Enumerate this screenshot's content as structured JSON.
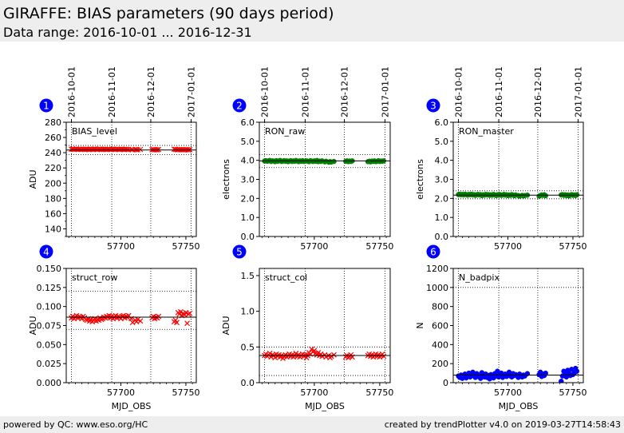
{
  "header": {
    "title": "GIRAFFE: BIAS parameters (90 days period)",
    "subtitle": "Data range: 2016-10-01 ... 2016-12-31"
  },
  "footer": {
    "left": "powered by QC: www.eso.org/HC",
    "right": "created by trendPlotter v4.0 on 2019-03-27T14:58:43"
  },
  "colors": {
    "badge": "#0000ff",
    "red": "#ff0000",
    "green": "#008000",
    "blue": "#0000ff",
    "line": "#000000"
  },
  "date_ticks": [
    {
      "label": "2016-10-01",
      "mjd": 57662
    },
    {
      "label": "2016-11-01",
      "mjd": 57693
    },
    {
      "label": "2016-12-01",
      "mjd": 57723
    },
    {
      "label": "2017-01-01",
      "mjd": 57754
    }
  ],
  "chart_data": [
    {
      "id": 1,
      "badge": "1",
      "type": "scatter",
      "label": "BIAS_level",
      "ylabel": "ADU",
      "xlabel": "",
      "marker": "x",
      "color": "red",
      "xlim": [
        57658,
        57758
      ],
      "ylim": [
        130,
        280
      ],
      "yticks": [
        "140",
        "160",
        "180",
        "200",
        "220",
        "240",
        "260",
        "280"
      ],
      "ytick_values": [
        140,
        160,
        180,
        200,
        220,
        240,
        260,
        280
      ],
      "xticks": [
        "57700",
        "57750"
      ],
      "xtick_values": [
        57700,
        57750
      ],
      "ref": 243.5,
      "band": [
        237.5,
        249.5
      ],
      "x": [
        57662,
        57663,
        57664,
        57665,
        57666,
        57667,
        57668,
        57669,
        57670,
        57671,
        57672,
        57673,
        57674,
        57675,
        57676,
        57677,
        57678,
        57679,
        57680,
        57681,
        57682,
        57683,
        57684,
        57685,
        57686,
        57687,
        57688,
        57689,
        57690,
        57691,
        57692,
        57693,
        57694,
        57695,
        57696,
        57697,
        57698,
        57699,
        57700,
        57701,
        57702,
        57703,
        57704,
        57705,
        57706,
        57708,
        57709,
        57711,
        57712,
        57713,
        57715,
        57724,
        57725,
        57726,
        57727,
        57728,
        57729,
        57741,
        57742,
        57743,
        57744,
        57745,
        57746,
        57747,
        57748,
        57749,
        57750,
        57751,
        57752,
        57753
      ],
      "y": [
        244.5,
        244.8,
        244.3,
        244.6,
        244.9,
        244.2,
        244.7,
        244.4,
        244.1,
        244.6,
        244.3,
        244.8,
        244.5,
        244.2,
        244.0,
        244.6,
        244.3,
        244.7,
        244.9,
        244.4,
        244.1,
        244.6,
        244.8,
        244.2,
        244.5,
        244.3,
        244.7,
        244.0,
        244.4,
        244.6,
        244.2,
        244.5,
        244.8,
        244.3,
        244.1,
        244.6,
        244.4,
        244.2,
        244.7,
        244.5,
        244.3,
        244.0,
        244.6,
        244.2,
        244.4,
        244.1,
        243.9,
        244.3,
        244.0,
        243.8,
        244.2,
        243.9,
        244.1,
        243.8,
        244.0,
        243.7,
        244.2,
        244.6,
        244.3,
        244.0,
        243.8,
        244.2,
        243.9,
        244.1,
        243.7,
        244.0,
        243.8,
        244.2,
        243.6,
        244.0
      ]
    },
    {
      "id": 2,
      "badge": "2",
      "type": "scatter",
      "label": "RON_raw",
      "ylabel": "electrons",
      "xlabel": "",
      "marker": "o",
      "color": "green",
      "xlim": [
        57658,
        57758
      ],
      "ylim": [
        0,
        6
      ],
      "yticks": [
        "0.0",
        "1.0",
        "2.0",
        "3.0",
        "4.0",
        "5.0",
        "6.0"
      ],
      "ytick_values": [
        0,
        1,
        2,
        3,
        4,
        5,
        6
      ],
      "xticks": [
        "57700",
        "57750"
      ],
      "xtick_values": [
        57700,
        57750
      ],
      "ref": 3.97,
      "band": [
        3.62,
        4.3
      ],
      "x": [
        57662,
        57663,
        57664,
        57665,
        57666,
        57667,
        57668,
        57669,
        57670,
        57671,
        57672,
        57673,
        57674,
        57675,
        57676,
        57677,
        57678,
        57679,
        57680,
        57681,
        57682,
        57683,
        57684,
        57685,
        57686,
        57687,
        57688,
        57689,
        57690,
        57691,
        57692,
        57693,
        57694,
        57695,
        57696,
        57697,
        57698,
        57699,
        57700,
        57701,
        57702,
        57703,
        57704,
        57705,
        57706,
        57708,
        57709,
        57711,
        57712,
        57713,
        57715,
        57724,
        57725,
        57726,
        57727,
        57728,
        57729,
        57741,
        57742,
        57743,
        57744,
        57745,
        57746,
        57747,
        57748,
        57749,
        57750,
        57751,
        57752,
        57753
      ],
      "y": [
        3.96,
        3.98,
        3.95,
        3.97,
        3.99,
        3.94,
        3.97,
        3.96,
        3.93,
        3.98,
        3.95,
        3.97,
        3.99,
        3.94,
        3.96,
        3.98,
        3.95,
        3.97,
        3.93,
        3.96,
        3.98,
        3.94,
        3.97,
        3.95,
        3.99,
        3.96,
        3.93,
        3.97,
        3.95,
        3.98,
        3.94,
        3.96,
        3.97,
        3.95,
        3.93,
        3.98,
        3.96,
        3.94,
        3.97,
        3.95,
        3.99,
        3.93,
        3.96,
        3.94,
        3.97,
        3.92,
        3.95,
        3.9,
        3.93,
        3.91,
        3.94,
        3.95,
        3.97,
        3.93,
        3.96,
        3.94,
        3.97,
        3.93,
        3.95,
        3.92,
        3.96,
        3.94,
        3.97,
        3.93,
        3.95,
        3.98,
        3.94,
        3.96,
        3.95,
        3.97
      ]
    },
    {
      "id": 3,
      "badge": "3",
      "type": "scatter",
      "label": "RON_master",
      "ylabel": "electrons",
      "xlabel": "",
      "marker": "o",
      "color": "green",
      "xlim": [
        57658,
        57758
      ],
      "ylim": [
        0,
        6
      ],
      "yticks": [
        "0.0",
        "1.0",
        "2.0",
        "3.0",
        "4.0",
        "5.0",
        "6.0"
      ],
      "ytick_values": [
        0,
        1,
        2,
        3,
        4,
        5,
        6
      ],
      "xticks": [
        "57700",
        "57750"
      ],
      "xtick_values": [
        57700,
        57750
      ],
      "ref": 2.17,
      "band": [
        1.98,
        2.4
      ],
      "x": [
        57662,
        57663,
        57664,
        57665,
        57666,
        57667,
        57668,
        57669,
        57670,
        57671,
        57672,
        57673,
        57674,
        57675,
        57676,
        57677,
        57678,
        57679,
        57680,
        57681,
        57682,
        57683,
        57684,
        57685,
        57686,
        57687,
        57688,
        57689,
        57690,
        57691,
        57692,
        57693,
        57694,
        57695,
        57696,
        57697,
        57698,
        57699,
        57700,
        57701,
        57702,
        57703,
        57704,
        57705,
        57706,
        57708,
        57709,
        57711,
        57712,
        57713,
        57715,
        57724,
        57725,
        57726,
        57727,
        57728,
        57729,
        57741,
        57742,
        57743,
        57744,
        57745,
        57746,
        57747,
        57748,
        57749,
        57750,
        57751,
        57752,
        57753
      ],
      "y": [
        2.2,
        2.22,
        2.19,
        2.21,
        2.18,
        2.22,
        2.2,
        2.17,
        2.21,
        2.19,
        2.22,
        2.18,
        2.2,
        2.16,
        2.19,
        2.21,
        2.18,
        2.2,
        2.15,
        2.19,
        2.17,
        2.21,
        2.18,
        2.2,
        2.16,
        2.19,
        2.17,
        2.21,
        2.18,
        2.15,
        2.19,
        2.17,
        2.2,
        2.16,
        2.18,
        2.21,
        2.17,
        2.19,
        2.15,
        2.18,
        2.16,
        2.2,
        2.17,
        2.14,
        2.18,
        2.15,
        2.12,
        2.16,
        2.13,
        2.15,
        2.17,
        2.12,
        2.15,
        2.18,
        2.16,
        2.19,
        2.14,
        2.18,
        2.2,
        2.16,
        2.19,
        2.15,
        2.18,
        2.13,
        2.17,
        2.2,
        2.16,
        2.18,
        2.15,
        2.19
      ]
    },
    {
      "id": 4,
      "badge": "4",
      "type": "scatter",
      "label": "struct_row",
      "ylabel": "ADU",
      "xlabel": "MJD_OBS",
      "marker": "x",
      "color": "red",
      "xlim": [
        57658,
        57758
      ],
      "ylim": [
        0,
        0.15
      ],
      "yticks": [
        "0.000",
        "0.025",
        "0.050",
        "0.075",
        "0.100",
        "0.125",
        "0.150"
      ],
      "ytick_values": [
        0,
        0.025,
        0.05,
        0.075,
        0.1,
        0.125,
        0.15
      ],
      "xticks": [
        "57700",
        "57750"
      ],
      "xtick_values": [
        57700,
        57750
      ],
      "ref": 0.086,
      "band": [
        0.07,
        0.12
      ],
      "x": [
        57662,
        57663,
        57664,
        57665,
        57666,
        57667,
        57668,
        57669,
        57670,
        57671,
        57672,
        57673,
        57674,
        57675,
        57676,
        57677,
        57678,
        57679,
        57680,
        57681,
        57682,
        57683,
        57684,
        57685,
        57686,
        57687,
        57688,
        57689,
        57690,
        57691,
        57692,
        57693,
        57694,
        57695,
        57696,
        57697,
        57698,
        57699,
        57700,
        57701,
        57702,
        57703,
        57704,
        57705,
        57706,
        57708,
        57709,
        57711,
        57712,
        57713,
        57715,
        57724,
        57725,
        57726,
        57727,
        57728,
        57729,
        57741,
        57742,
        57743,
        57744,
        57745,
        57746,
        57747,
        57748,
        57749,
        57750,
        57751,
        57752,
        57753
      ],
      "y": [
        0.085,
        0.087,
        0.084,
        0.086,
        0.088,
        0.085,
        0.087,
        0.086,
        0.084,
        0.087,
        0.085,
        0.083,
        0.082,
        0.084,
        0.081,
        0.083,
        0.08,
        0.082,
        0.084,
        0.081,
        0.083,
        0.082,
        0.085,
        0.083,
        0.084,
        0.086,
        0.085,
        0.087,
        0.086,
        0.088,
        0.085,
        0.087,
        0.084,
        0.086,
        0.088,
        0.085,
        0.087,
        0.086,
        0.084,
        0.087,
        0.088,
        0.085,
        0.087,
        0.086,
        0.088,
        0.084,
        0.079,
        0.082,
        0.08,
        0.083,
        0.081,
        0.085,
        0.087,
        0.084,
        0.086,
        0.085,
        0.087,
        0.08,
        0.082,
        0.079,
        0.092,
        0.09,
        0.093,
        0.088,
        0.091,
        0.089,
        0.092,
        0.078,
        0.09,
        0.091
      ]
    },
    {
      "id": 5,
      "badge": "5",
      "type": "scatter",
      "label": "struct_col",
      "ylabel": "ADU",
      "xlabel": "MJD_OBS",
      "marker": "x",
      "color": "red",
      "xlim": [
        57658,
        57758
      ],
      "ylim": [
        0,
        1.6
      ],
      "yticks": [
        "0.0",
        "0.5",
        "1.0",
        "1.5"
      ],
      "ytick_values": [
        0,
        0.5,
        1.0,
        1.5
      ],
      "xticks": [
        "57700",
        "57750"
      ],
      "xtick_values": [
        57700,
        57750
      ],
      "ref": 0.38,
      "band": [
        0.1,
        0.5
      ],
      "x": [
        57662,
        57663,
        57664,
        57665,
        57666,
        57667,
        57668,
        57669,
        57670,
        57671,
        57672,
        57673,
        57674,
        57675,
        57676,
        57677,
        57678,
        57679,
        57680,
        57681,
        57682,
        57683,
        57684,
        57685,
        57686,
        57687,
        57688,
        57689,
        57690,
        57691,
        57692,
        57693,
        57694,
        57695,
        57696,
        57697,
        57698,
        57699,
        57700,
        57701,
        57702,
        57703,
        57704,
        57705,
        57706,
        57708,
        57709,
        57711,
        57712,
        57713,
        57715,
        57724,
        57725,
        57726,
        57727,
        57728,
        57729,
        57741,
        57742,
        57743,
        57744,
        57745,
        57746,
        57747,
        57748,
        57749,
        57750,
        57751,
        57752,
        57753
      ],
      "y": [
        0.38,
        0.4,
        0.37,
        0.39,
        0.41,
        0.36,
        0.39,
        0.38,
        0.35,
        0.4,
        0.37,
        0.39,
        0.36,
        0.38,
        0.34,
        0.37,
        0.39,
        0.36,
        0.38,
        0.4,
        0.37,
        0.39,
        0.36,
        0.38,
        0.41,
        0.37,
        0.39,
        0.36,
        0.38,
        0.4,
        0.37,
        0.39,
        0.35,
        0.38,
        0.42,
        0.4,
        0.47,
        0.43,
        0.45,
        0.41,
        0.39,
        0.42,
        0.38,
        0.4,
        0.37,
        0.39,
        0.36,
        0.38,
        0.35,
        0.37,
        0.39,
        0.36,
        0.38,
        0.35,
        0.37,
        0.39,
        0.36,
        0.38,
        0.4,
        0.37,
        0.39,
        0.36,
        0.38,
        0.4,
        0.37,
        0.39,
        0.36,
        0.38,
        0.4,
        0.37
      ]
    },
    {
      "id": 6,
      "badge": "6",
      "type": "scatter",
      "label": "N_badpix",
      "ylabel": "N",
      "xlabel": "MJD_OBS",
      "marker": "o",
      "color": "blue",
      "xlim": [
        57658,
        57758
      ],
      "ylim": [
        0,
        1200
      ],
      "yticks": [
        "0",
        "200",
        "400",
        "600",
        "800",
        "1000",
        "1200"
      ],
      "ytick_values": [
        0,
        200,
        400,
        600,
        800,
        1000,
        1200
      ],
      "xticks": [
        "57700",
        "57750"
      ],
      "xtick_values": [
        57700,
        57750
      ],
      "ref": 80,
      "band": [
        0,
        1000
      ],
      "x": [
        57662,
        57663,
        57664,
        57665,
        57666,
        57667,
        57668,
        57669,
        57670,
        57671,
        57672,
        57673,
        57674,
        57675,
        57676,
        57677,
        57678,
        57679,
        57680,
        57681,
        57682,
        57683,
        57684,
        57685,
        57686,
        57687,
        57688,
        57689,
        57690,
        57691,
        57692,
        57693,
        57694,
        57695,
        57696,
        57697,
        57698,
        57699,
        57700,
        57701,
        57702,
        57703,
        57704,
        57705,
        57706,
        57708,
        57709,
        57711,
        57712,
        57713,
        57715,
        57724,
        57725,
        57726,
        57727,
        57728,
        57729,
        57741,
        57742,
        57743,
        57744,
        57745,
        57746,
        57747,
        57748,
        57749,
        57750,
        57751,
        57752,
        57753
      ],
      "y": [
        70,
        55,
        80,
        45,
        65,
        90,
        50,
        75,
        100,
        60,
        85,
        110,
        70,
        55,
        95,
        65,
        80,
        45,
        105,
        70,
        60,
        90,
        55,
        75,
        40,
        85,
        65,
        50,
        95,
        70,
        120,
        60,
        85,
        100,
        55,
        75,
        90,
        65,
        80,
        110,
        70,
        60,
        95,
        75,
        85,
        55,
        90,
        60,
        80,
        70,
        95,
        85,
        110,
        65,
        90,
        75,
        100,
        15,
        70,
        120,
        85,
        60,
        130,
        95,
        75,
        140,
        85,
        100,
        150,
        120
      ]
    }
  ]
}
